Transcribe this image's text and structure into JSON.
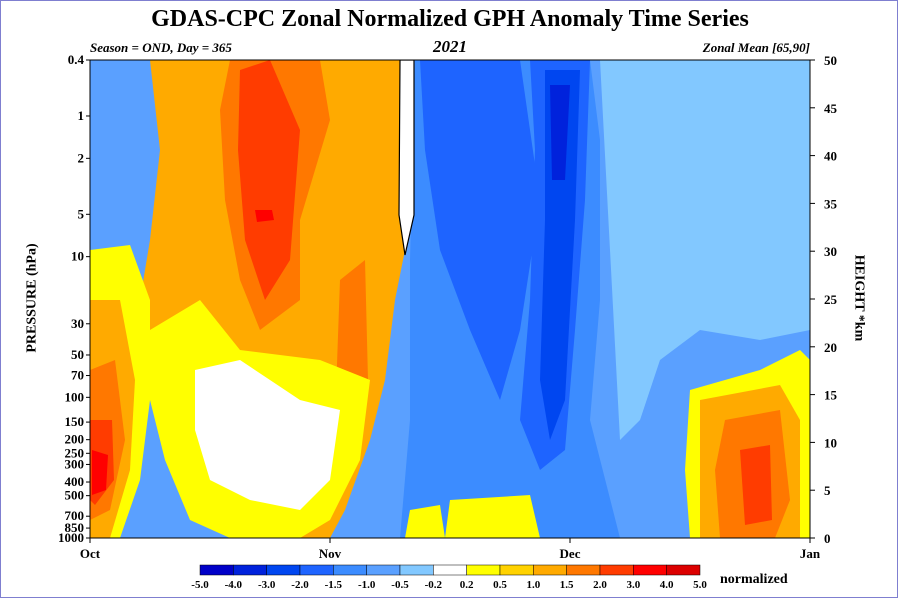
{
  "chart_data": {
    "type": "heatmap",
    "title": "GDAS-CPC Zonal Normalized GPH Anomaly Time Series",
    "subtitle_left": "Season = OND, Day = 365",
    "subtitle_center": "2021",
    "subtitle_right": "Zonal Mean [65,90]",
    "ylabel_left": "PRESSURE (hPa)",
    "ylabel_right": "HEIGHT *km",
    "x_ticks": [
      "Oct",
      "Nov",
      "Dec",
      "Jan"
    ],
    "y_ticks_left": [
      "0.4",
      "1",
      "2",
      "5",
      "10",
      "30",
      "50",
      "70",
      "100",
      "150",
      "200",
      "250",
      "300",
      "400",
      "500",
      "700",
      "850",
      "1000"
    ],
    "y_ticks_right": [
      "50",
      "45",
      "40",
      "35",
      "30",
      "25",
      "20",
      "15",
      "10",
      "5",
      "0"
    ],
    "ylim_pressure_hpa": [
      1000,
      0.4
    ],
    "ylim_height_km": [
      0,
      50
    ],
    "colorbar": {
      "levels": [
        "-5.0",
        "-4.0",
        "-3.0",
        "-2.0",
        "-1.5",
        "-1.0",
        "-0.5",
        "-0.2",
        "0.2",
        "0.5",
        "1.0",
        "1.5",
        "2.0",
        "3.0",
        "4.0",
        "5.0"
      ],
      "colors": [
        "#0000c8",
        "#0022dc",
        "#0046f0",
        "#1e64ff",
        "#3c8cff",
        "#5aa0ff",
        "#82c8ff",
        "#ffffff",
        "#ffff00",
        "#ffd200",
        "#ffaa00",
        "#ff7800",
        "#ff3c00",
        "#ff0000",
        "#dc0000"
      ],
      "unit": "normalized"
    }
  }
}
